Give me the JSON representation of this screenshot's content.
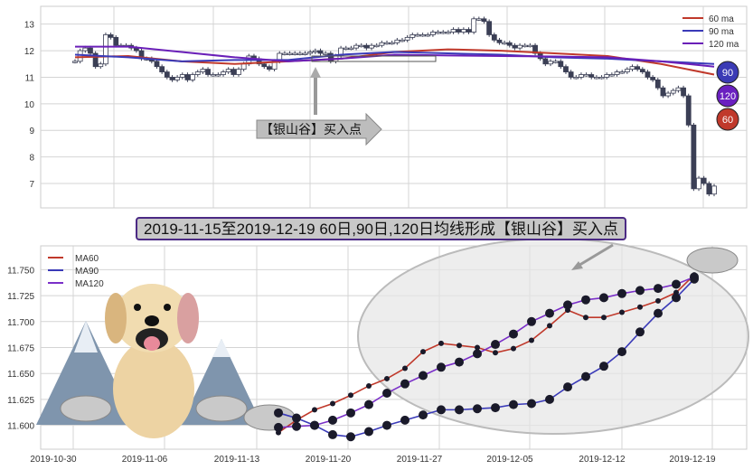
{
  "chart_data": [
    {
      "type": "candlestick",
      "ylim": [
        6.08,
        13.67
      ],
      "yticks": [
        7,
        8,
        9,
        10,
        11,
        12,
        13
      ],
      "grid": true,
      "legend_placement": "top-right",
      "legend": [
        "60 ma",
        "90 ma",
        "120 ma"
      ],
      "close": [
        11.6,
        12.0,
        12.1,
        11.9,
        11.4,
        11.5,
        12.6,
        12.5,
        12.2,
        12.2,
        12.2,
        12.1,
        12.0,
        11.7,
        11.7,
        11.6,
        11.4,
        11.2,
        11.0,
        10.9,
        11.0,
        11.1,
        10.9,
        11.1,
        11.2,
        11.3,
        11.1,
        11.1,
        11.1,
        11.2,
        11.3,
        11.1,
        11.3,
        11.5,
        11.8,
        11.7,
        11.5,
        11.4,
        11.3,
        11.6,
        11.9,
        11.9,
        11.9,
        11.9,
        11.9,
        11.9,
        11.95,
        12.0,
        11.9,
        11.9,
        11.6,
        11.8,
        12.1,
        12.1,
        12.1,
        12.2,
        12.2,
        12.1,
        12.2,
        12.2,
        12.3,
        12.3,
        12.3,
        12.4,
        12.4,
        12.5,
        12.6,
        12.6,
        12.6,
        12.6,
        12.7,
        12.7,
        12.7,
        12.7,
        12.8,
        12.7,
        12.8,
        12.7,
        13.2,
        13.2,
        13.1,
        12.6,
        12.4,
        12.3,
        12.3,
        12.2,
        12.1,
        12.2,
        12.2,
        12.2,
        11.9,
        11.7,
        11.5,
        11.6,
        11.6,
        11.4,
        11.2,
        11.0,
        11.0,
        11.1,
        11.1,
        11.0,
        11.0,
        11.0,
        11.1,
        11.1,
        11.2,
        11.2,
        11.3,
        11.4,
        11.3,
        11.2,
        11.0,
        10.9,
        10.6,
        10.3,
        10.4,
        10.5,
        10.6,
        10.3,
        9.2,
        6.8,
        7.2,
        7.0,
        6.6,
        6.9
      ],
      "series": [
        {
          "name": "60 ma",
          "color": "#c0392b",
          "values": [
            11.75,
            11.8,
            11.6,
            11.5,
            11.6,
            11.7,
            11.95,
            12.05,
            12.0,
            11.9,
            11.8,
            11.5,
            11.1
          ]
        },
        {
          "name": "90 ma",
          "color": "#3a3ab8",
          "values": [
            11.85,
            11.75,
            11.6,
            11.65,
            11.65,
            11.85,
            11.95,
            11.9,
            11.85,
            11.75,
            11.7,
            11.6,
            11.5
          ]
        },
        {
          "name": "120 ma",
          "color": "#6a1fb8",
          "values": [
            12.15,
            12.15,
            11.95,
            11.75,
            11.6,
            11.7,
            11.85,
            11.82,
            11.8,
            11.78,
            11.75,
            11.6,
            11.4
          ]
        }
      ],
      "annotation": "【银山谷】买入点",
      "badges": [
        {
          "label": "90",
          "color": "#3b3bb5"
        },
        {
          "label": "120",
          "color": "#6a1fc0"
        },
        {
          "label": "60",
          "color": "#c0392b"
        }
      ]
    },
    {
      "type": "line",
      "title": "2019-11-15至2019-12-19 60日,90日,120日均线形成【银山谷】买入点",
      "ylim": [
        11.577,
        11.773
      ],
      "yticks": [
        "11.600",
        "11.625",
        "11.650",
        "11.675",
        "11.700",
        "11.725",
        "11.750"
      ],
      "xticks": [
        "2019-10-30",
        "2019-11-06",
        "2019-11-13",
        "2019-11-20",
        "2019-11-27",
        "2019-12-05",
        "2019-12-12",
        "2019-12-19"
      ],
      "grid": true,
      "legend_placement": "top-left",
      "series": [
        {
          "name": "MA60",
          "color": "#c0392b",
          "values": [
            11.593,
            11.605,
            11.615,
            11.621,
            11.629,
            11.638,
            11.645,
            11.655,
            11.671,
            11.679,
            11.677,
            11.675,
            11.67,
            11.674,
            11.682,
            11.696,
            11.711,
            11.704,
            11.704,
            11.709,
            11.714,
            11.72,
            11.728,
            11.745
          ]
        },
        {
          "name": "MA90",
          "color": "#3a3ab8",
          "values": [
            11.612,
            11.607,
            11.6,
            11.591,
            11.589,
            11.594,
            11.6,
            11.605,
            11.61,
            11.615,
            11.615,
            11.616,
            11.617,
            11.62,
            11.621,
            11.625,
            11.637,
            11.647,
            11.657,
            11.671,
            11.69,
            11.708,
            11.723,
            11.741
          ]
        },
        {
          "name": "MA120",
          "color": "#7a2fc8",
          "values": [
            11.598,
            11.599,
            11.6,
            11.605,
            11.612,
            11.62,
            11.631,
            11.64,
            11.648,
            11.656,
            11.661,
            11.669,
            11.678,
            11.688,
            11.7,
            11.708,
            11.716,
            11.721,
            11.723,
            11.727,
            11.73,
            11.732,
            11.736,
            11.743
          ]
        }
      ]
    }
  ]
}
